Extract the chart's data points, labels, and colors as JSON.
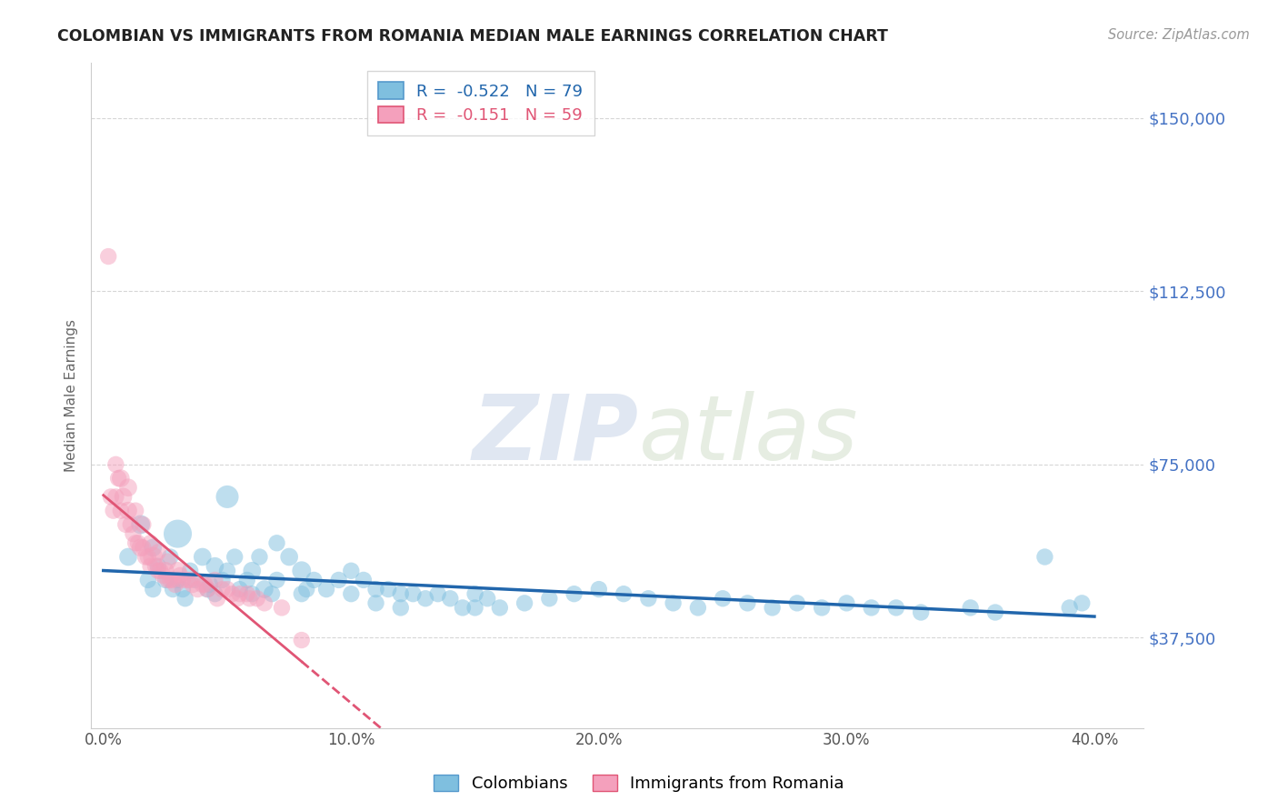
{
  "title": "COLOMBIAN VS IMMIGRANTS FROM ROMANIA MEDIAN MALE EARNINGS CORRELATION CHART",
  "source_text": "Source: ZipAtlas.com",
  "ylabel": "Median Male Earnings",
  "xlabel": "",
  "xlim": [
    -0.5,
    42.0
  ],
  "ylim": [
    18000,
    162000
  ],
  "yticks": [
    37500,
    75000,
    112500,
    150000
  ],
  "ytick_labels": [
    "$37,500",
    "$75,000",
    "$112,500",
    "$150,000"
  ],
  "xticks": [
    0.0,
    10.0,
    20.0,
    30.0,
    40.0
  ],
  "xtick_labels": [
    "0.0%",
    "10.0%",
    "20.0%",
    "30.0%",
    "40.0%"
  ],
  "blue_R": -0.522,
  "blue_N": 79,
  "pink_R": -0.151,
  "pink_N": 59,
  "blue_color": "#7fbfdf",
  "pink_color": "#f4a0bc",
  "trend_blue": "#2166ac",
  "trend_pink": "#e05575",
  "watermark_zip": "ZIP",
  "watermark_atlas": "atlas",
  "legend_label_blue": "Colombians",
  "legend_label_pink": "Immigrants from Romania",
  "blue_scatter_x": [
    1.0,
    1.5,
    2.0,
    2.0,
    2.2,
    2.5,
    2.7,
    3.0,
    3.0,
    3.2,
    3.5,
    3.7,
    4.0,
    4.2,
    4.5,
    4.5,
    4.8,
    5.0,
    5.0,
    5.3,
    5.5,
    5.8,
    6.0,
    6.0,
    6.3,
    6.5,
    7.0,
    7.0,
    7.5,
    8.0,
    8.0,
    8.5,
    9.0,
    9.5,
    10.0,
    10.0,
    10.5,
    11.0,
    11.0,
    11.5,
    12.0,
    12.0,
    12.5,
    13.0,
    13.5,
    14.0,
    14.5,
    15.0,
    15.0,
    15.5,
    16.0,
    17.0,
    18.0,
    19.0,
    20.0,
    21.0,
    22.0,
    23.0,
    24.0,
    25.0,
    26.0,
    27.0,
    28.0,
    29.0,
    30.0,
    31.0,
    32.0,
    33.0,
    35.0,
    36.0,
    38.0,
    39.0,
    39.5,
    1.8,
    2.8,
    3.3,
    4.3,
    6.8,
    8.2
  ],
  "blue_scatter_y": [
    55000,
    62000,
    57000,
    48000,
    53000,
    50000,
    55000,
    60000,
    50000,
    48000,
    52000,
    50000,
    55000,
    48000,
    53000,
    47000,
    50000,
    68000,
    52000,
    55000,
    48000,
    50000,
    52000,
    47000,
    55000,
    48000,
    58000,
    50000,
    55000,
    52000,
    47000,
    50000,
    48000,
    50000,
    52000,
    47000,
    50000,
    48000,
    45000,
    48000,
    47000,
    44000,
    47000,
    46000,
    47000,
    46000,
    44000,
    47000,
    44000,
    46000,
    44000,
    45000,
    46000,
    47000,
    48000,
    47000,
    46000,
    45000,
    44000,
    46000,
    45000,
    44000,
    45000,
    44000,
    45000,
    44000,
    44000,
    43000,
    44000,
    43000,
    55000,
    44000,
    45000,
    50000,
    48000,
    46000,
    49000,
    47000,
    48000
  ],
  "blue_scatter_size": [
    80,
    90,
    80,
    70,
    70,
    70,
    70,
    200,
    70,
    70,
    70,
    70,
    80,
    70,
    80,
    70,
    70,
    130,
    70,
    70,
    70,
    70,
    80,
    70,
    70,
    80,
    70,
    70,
    80,
    90,
    70,
    70,
    70,
    70,
    70,
    70,
    70,
    70,
    70,
    70,
    70,
    70,
    70,
    70,
    70,
    70,
    70,
    70,
    70,
    70,
    70,
    70,
    70,
    70,
    70,
    70,
    70,
    70,
    70,
    70,
    70,
    70,
    70,
    70,
    70,
    70,
    70,
    70,
    70,
    70,
    70,
    70,
    70,
    70,
    70,
    70,
    70,
    70,
    70
  ],
  "pink_scatter_x": [
    0.3,
    0.4,
    0.5,
    0.6,
    0.7,
    0.8,
    0.9,
    1.0,
    1.1,
    1.2,
    1.3,
    1.4,
    1.5,
    1.6,
    1.7,
    1.8,
    1.9,
    2.0,
    2.1,
    2.2,
    2.3,
    2.4,
    2.5,
    2.6,
    2.7,
    2.8,
    2.9,
    3.0,
    3.2,
    3.4,
    3.6,
    3.8,
    4.0,
    4.2,
    4.5,
    4.8,
    5.2,
    5.5,
    5.8,
    6.2,
    0.5,
    0.7,
    1.0,
    1.3,
    1.6,
    1.9,
    2.2,
    2.6,
    3.1,
    3.5,
    4.1,
    4.6,
    5.0,
    5.4,
    5.9,
    6.5,
    7.2,
    8.0,
    0.2
  ],
  "pink_scatter_y": [
    68000,
    65000,
    68000,
    72000,
    65000,
    68000,
    62000,
    65000,
    62000,
    60000,
    58000,
    58000,
    57000,
    57000,
    55000,
    55000,
    53000,
    55000,
    53000,
    52000,
    52000,
    51000,
    52000,
    50000,
    50000,
    50000,
    49000,
    52000,
    50000,
    50000,
    49000,
    48000,
    49000,
    48000,
    50000,
    48000,
    47000,
    47000,
    47000,
    46000,
    75000,
    72000,
    70000,
    65000,
    62000,
    58000,
    56000,
    54000,
    51000,
    50000,
    49000,
    46000,
    48000,
    46000,
    46000,
    45000,
    44000,
    37000,
    120000
  ],
  "pink_scatter_size": [
    70,
    70,
    70,
    70,
    70,
    80,
    70,
    80,
    70,
    70,
    70,
    70,
    80,
    70,
    70,
    70,
    70,
    100,
    70,
    70,
    70,
    70,
    80,
    70,
    70,
    70,
    70,
    80,
    70,
    70,
    70,
    70,
    70,
    70,
    70,
    70,
    70,
    70,
    70,
    70,
    70,
    80,
    80,
    70,
    70,
    70,
    70,
    70,
    70,
    70,
    70,
    70,
    70,
    70,
    70,
    70,
    70,
    70,
    70
  ]
}
